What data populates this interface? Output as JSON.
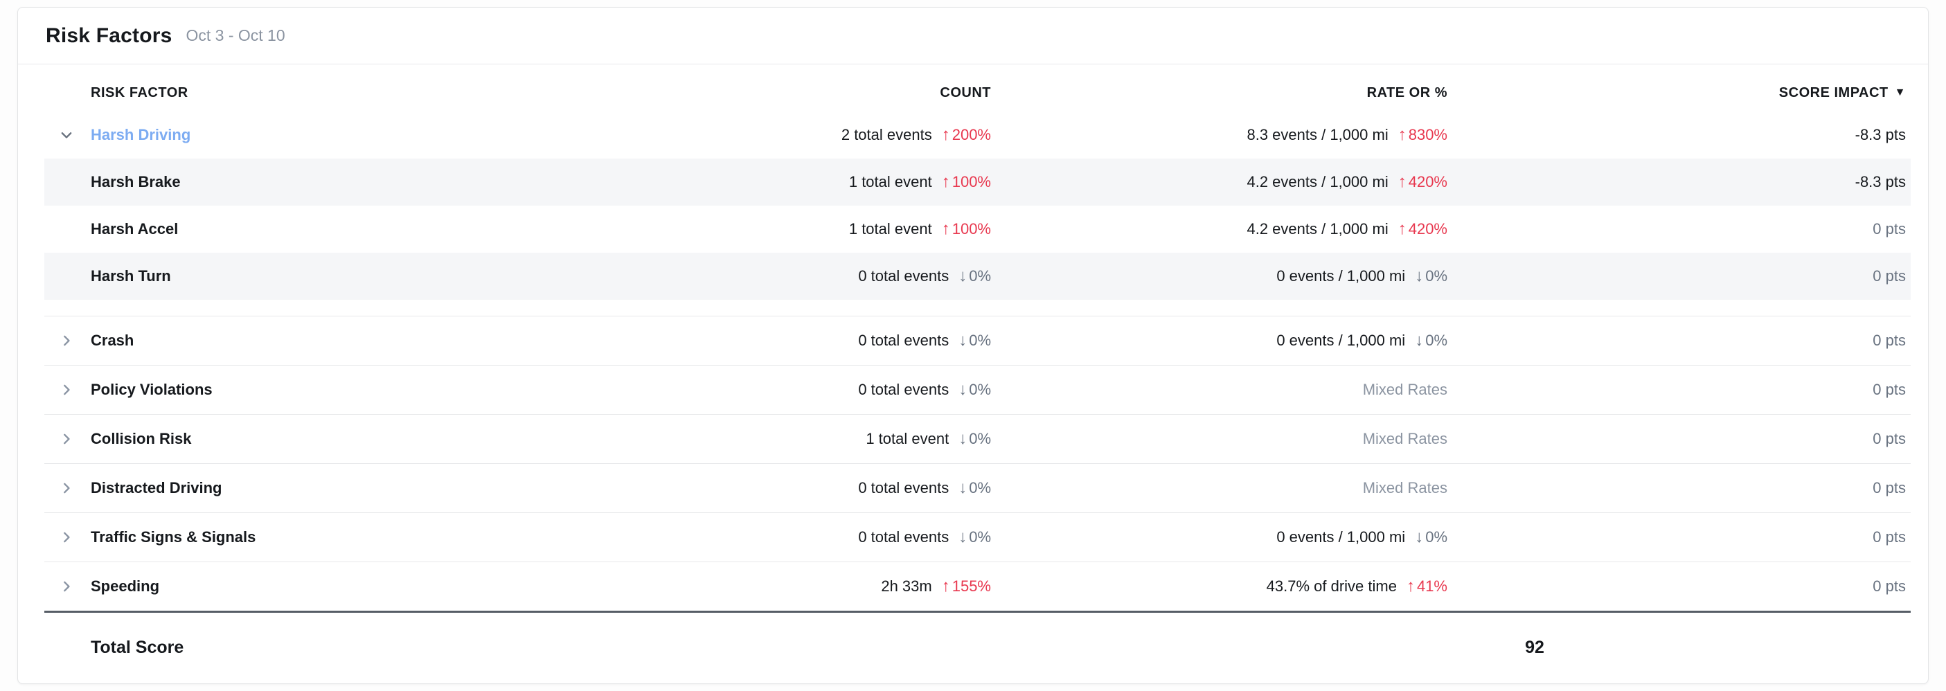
{
  "header": {
    "title": "Risk Factors",
    "date_range": "Oct 3 - Oct 10"
  },
  "colors": {
    "accent_blue": "#7dacf2",
    "negative_red": "#e8384f",
    "muted_slate": "#687280",
    "muted_gray": "#8b94a1"
  },
  "icons": {
    "trend_up": "↑",
    "trend_down": "↓",
    "sort_desc": "▼",
    "chevron_right": "chevron-right",
    "chevron_down": "chevron-down"
  },
  "table": {
    "columns": [
      {
        "label": "RISK FACTOR",
        "sorted": false
      },
      {
        "label": "COUNT",
        "sorted": false
      },
      {
        "label": "RATE OR %",
        "sorted": false
      },
      {
        "label": "SCORE IMPACT",
        "sorted": true,
        "sort_direction": "desc"
      }
    ],
    "rows": [
      {
        "label": "Harsh Driving",
        "expanded": true,
        "highlight": true,
        "count": {
          "value": "2 total events",
          "trend": "up",
          "trend_value": "200%"
        },
        "rate": {
          "value": "8.3 events / 1,000 mi",
          "trend": "up",
          "trend_value": "830%"
        },
        "score": {
          "value": "-8.3 pts",
          "emphasis": true
        },
        "children": [
          {
            "label": "Harsh Brake",
            "count": {
              "value": "1 total event",
              "trend": "up",
              "trend_value": "100%"
            },
            "rate": {
              "value": "4.2 events / 1,000 mi",
              "trend": "up",
              "trend_value": "420%"
            },
            "score": {
              "value": "-8.3 pts",
              "emphasis": true
            }
          },
          {
            "label": "Harsh Accel",
            "count": {
              "value": "1 total event",
              "trend": "up",
              "trend_value": "100%"
            },
            "rate": {
              "value": "4.2 events / 1,000 mi",
              "trend": "up",
              "trend_value": "420%"
            },
            "score": {
              "value": "0 pts"
            }
          },
          {
            "label": "Harsh Turn",
            "count": {
              "value": "0 total events",
              "trend": "down",
              "trend_value": "0%"
            },
            "rate": {
              "value": "0 events / 1,000 mi",
              "trend": "down",
              "trend_value": "0%"
            },
            "score": {
              "value": "0 pts"
            }
          }
        ]
      },
      {
        "label": "Crash",
        "expanded": false,
        "count": {
          "value": "0 total events",
          "trend": "down",
          "trend_value": "0%"
        },
        "rate": {
          "value": "0 events / 1,000 mi",
          "trend": "down",
          "trend_value": "0%"
        },
        "score": {
          "value": "0 pts"
        }
      },
      {
        "label": "Policy Violations",
        "expanded": false,
        "count": {
          "value": "0 total events",
          "trend": "down",
          "trend_value": "0%"
        },
        "rate": {
          "value": "Mixed Rates",
          "muted": true
        },
        "score": {
          "value": "0 pts"
        }
      },
      {
        "label": "Collision Risk",
        "expanded": false,
        "count": {
          "value": "1 total event",
          "trend": "down",
          "trend_value": "0%"
        },
        "rate": {
          "value": "Mixed Rates",
          "muted": true
        },
        "score": {
          "value": "0 pts"
        }
      },
      {
        "label": "Distracted Driving",
        "expanded": false,
        "count": {
          "value": "0 total events",
          "trend": "down",
          "trend_value": "0%"
        },
        "rate": {
          "value": "Mixed Rates",
          "muted": true
        },
        "score": {
          "value": "0 pts"
        }
      },
      {
        "label": "Traffic Signs & Signals",
        "expanded": false,
        "count": {
          "value": "0 total events",
          "trend": "down",
          "trend_value": "0%"
        },
        "rate": {
          "value": "0 events / 1,000 mi",
          "trend": "down",
          "trend_value": "0%"
        },
        "score": {
          "value": "0 pts"
        }
      },
      {
        "label": "Speeding",
        "expanded": false,
        "count": {
          "value": "2h 33m",
          "trend": "up",
          "trend_value": "155%"
        },
        "rate": {
          "value": "43.7% of drive time",
          "trend": "up",
          "trend_value": "41%"
        },
        "score": {
          "value": "0 pts"
        }
      }
    ],
    "total": {
      "label": "Total Score",
      "value": "92"
    }
  }
}
